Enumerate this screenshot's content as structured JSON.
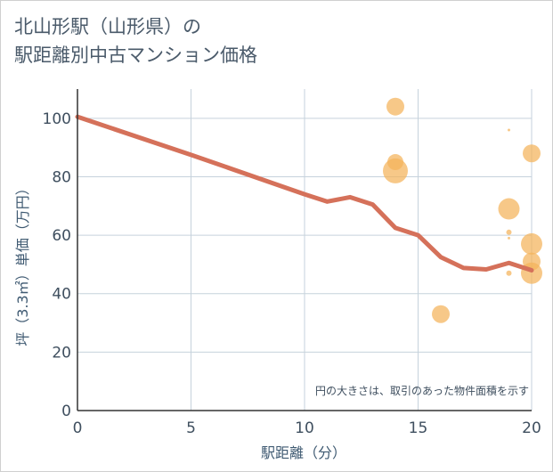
{
  "title_line1": "北山形駅（山形県）の",
  "title_line2": "駅距離別中古マンション価格",
  "chart_data": {
    "type": "scatter",
    "xlabel": "駅距離（分）",
    "ylabel": "坪（3.3㎡）単価（万円）",
    "xlim": [
      0,
      20
    ],
    "ylim": [
      0,
      110
    ],
    "xticks": [
      0,
      5,
      10,
      15,
      20
    ],
    "yticks": [
      0,
      20,
      40,
      60,
      80,
      100
    ],
    "grid": true,
    "note": "円の大きさは、取引のあった物件面積を示す",
    "colors": {
      "bubble": "#f4b35a",
      "line": "#d5715a",
      "grid": "#c6d2dc"
    },
    "bubbles": [
      {
        "x": 14,
        "y": 104,
        "size": 10
      },
      {
        "x": 14,
        "y": 85,
        "size": 9
      },
      {
        "x": 14,
        "y": 82,
        "size": 14
      },
      {
        "x": 16,
        "y": 33,
        "size": 10
      },
      {
        "x": 19,
        "y": 96,
        "size": 1.5
      },
      {
        "x": 19,
        "y": 69,
        "size": 12
      },
      {
        "x": 19,
        "y": 61,
        "size": 3
      },
      {
        "x": 19,
        "y": 59,
        "size": 1.5
      },
      {
        "x": 19,
        "y": 47,
        "size": 3
      },
      {
        "x": 20,
        "y": 88,
        "size": 10
      },
      {
        "x": 20,
        "y": 57,
        "size": 12
      },
      {
        "x": 20,
        "y": 51,
        "size": 10
      },
      {
        "x": 20,
        "y": 47,
        "size": 12
      }
    ],
    "trend": {
      "x": [
        0,
        5,
        10,
        11,
        12,
        13,
        14,
        15,
        16,
        17,
        18,
        19,
        20
      ],
      "y": [
        100.5,
        87.5,
        74,
        71.5,
        73,
        70.5,
        62.5,
        60,
        52.5,
        48.8,
        48.3,
        50.5,
        48
      ]
    }
  }
}
